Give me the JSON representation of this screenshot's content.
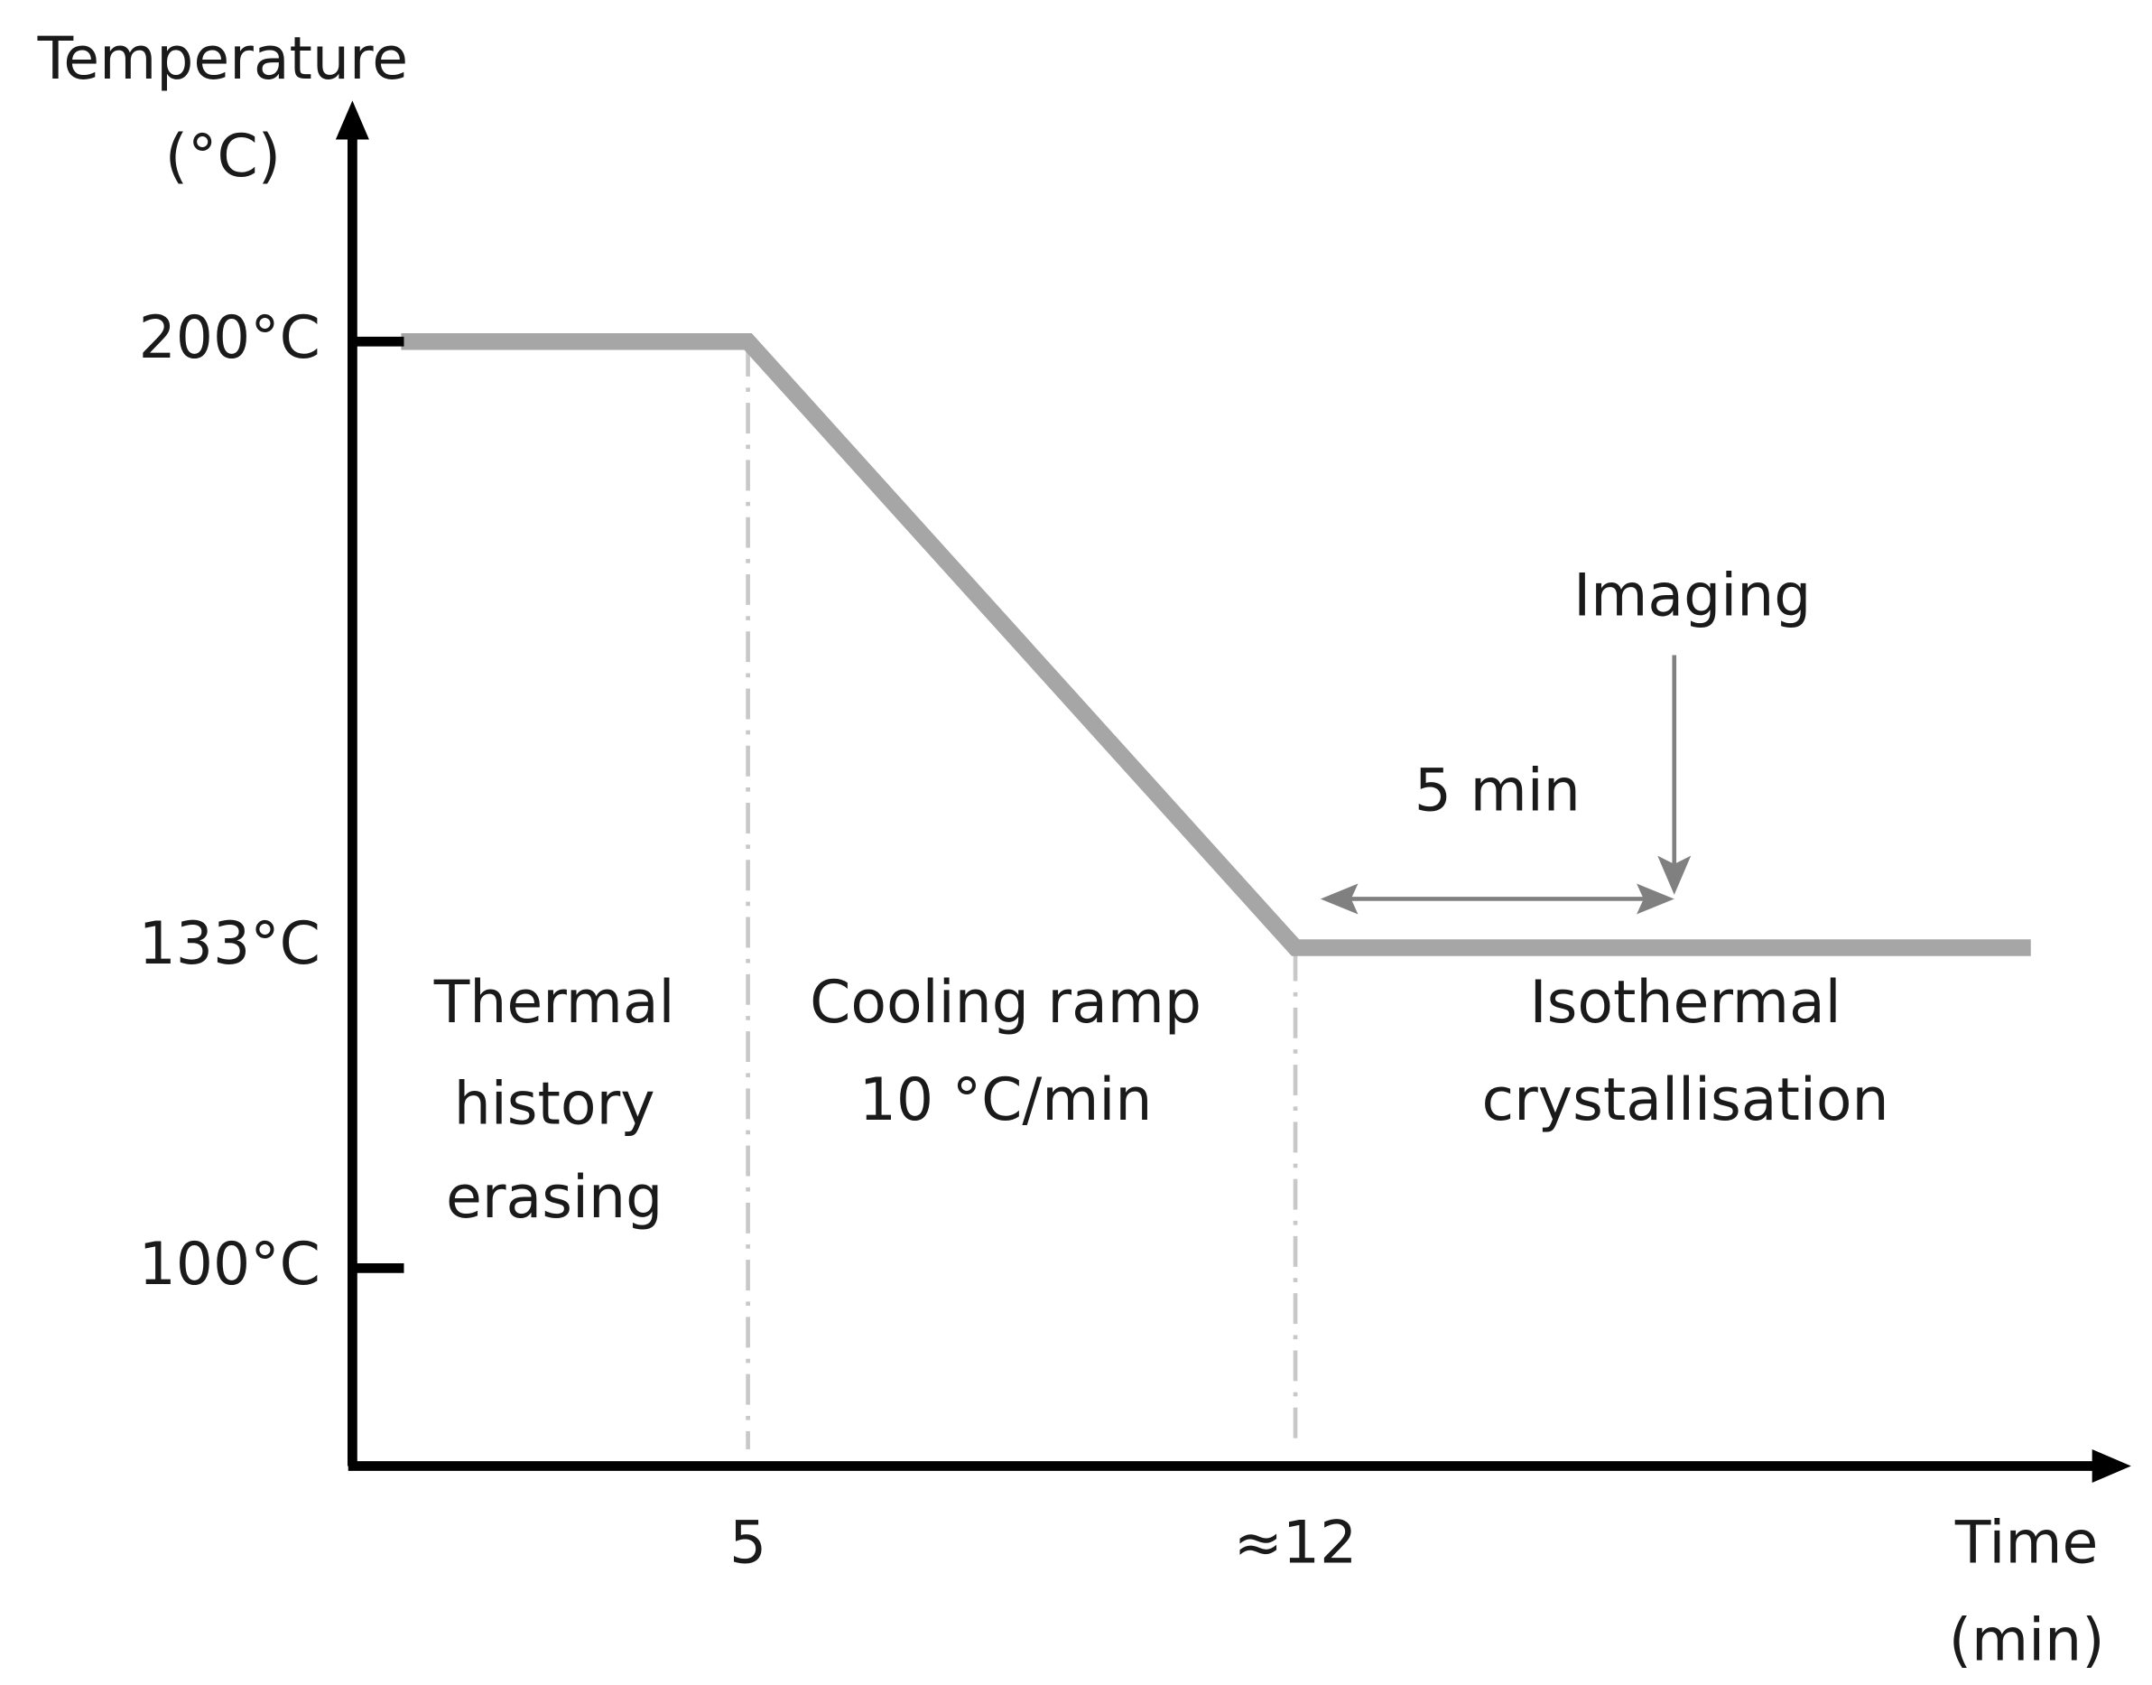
{
  "y_axis": {
    "title": [
      "Temperature",
      "(°C)"
    ],
    "ticks": [
      "200°C",
      "133°C",
      "100°C"
    ]
  },
  "x_axis": {
    "title": [
      "Time",
      "(min)"
    ],
    "ticks": [
      "5",
      "≈12"
    ]
  },
  "phases": [
    {
      "label": [
        "Thermal",
        "history",
        "erasing"
      ]
    },
    {
      "label": [
        "Cooling ramp",
        "10 °C/min"
      ]
    },
    {
      "label": [
        "Isothermal",
        "crystallisation"
      ]
    }
  ],
  "annotations": {
    "imaging": "Imaging",
    "duration": "5 min"
  }
}
